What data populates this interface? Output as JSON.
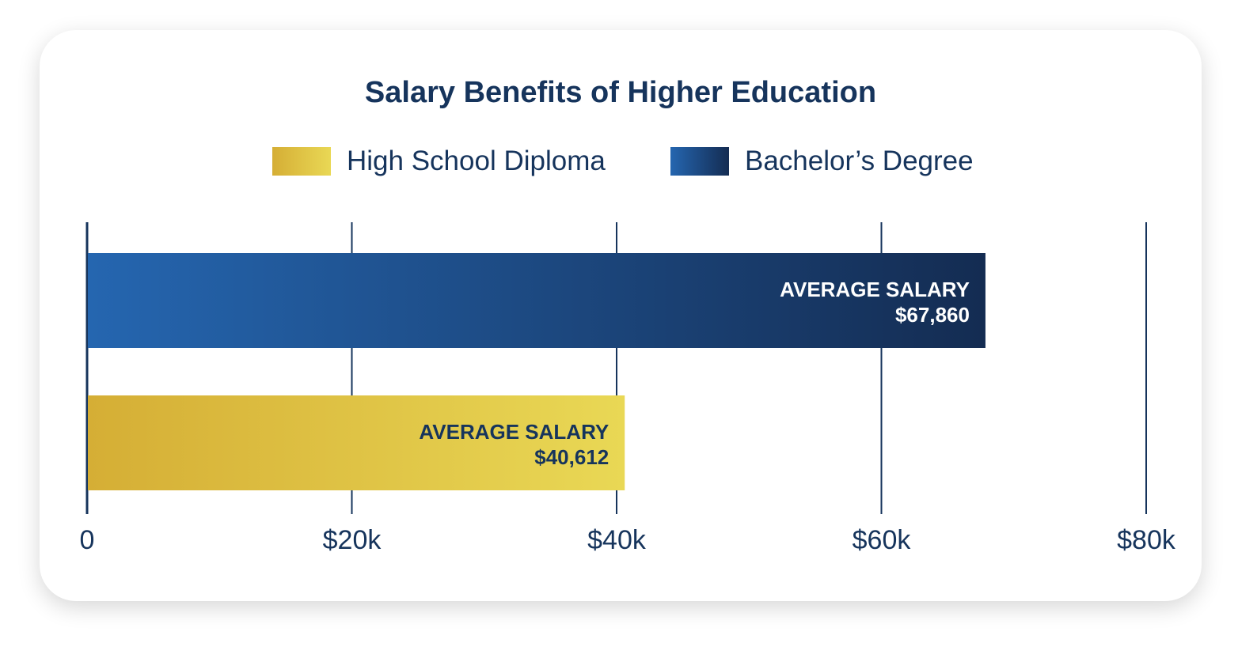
{
  "chart_data": {
    "type": "bar",
    "orientation": "horizontal",
    "title": "Salary Benefits of Higher Education",
    "legend_placement": "top",
    "xlim": [
      0,
      80000
    ],
    "ticks": [
      0,
      20000,
      40000,
      60000,
      80000
    ],
    "tick_labels": [
      "0",
      "$20k",
      "$40k",
      "$60k",
      "$80k"
    ],
    "grid": true,
    "series": [
      {
        "name": "Bachelor’s Degree",
        "value": 67860,
        "label_line1": "AVERAGE SALARY",
        "label_line2": "$67,860",
        "color_start": "#2566b0",
        "color_end": "#142c52",
        "text_color": "#ffffff"
      },
      {
        "name": "High School Diploma",
        "value": 40612,
        "label_line1": "AVERAGE SALARY",
        "label_line2": "$40,612",
        "color_start": "#d5ae35",
        "color_end": "#e9d855",
        "text_color": "#16345c"
      }
    ]
  },
  "legend": [
    {
      "label": "High School Diploma",
      "color_start": "#d5ae35",
      "color_end": "#e9d855"
    },
    {
      "label": "Bachelor’s Degree",
      "color_start": "#2566b0",
      "color_end": "#142c52"
    }
  ],
  "colors": {
    "text": "#16345c",
    "axis": "#16345c"
  }
}
